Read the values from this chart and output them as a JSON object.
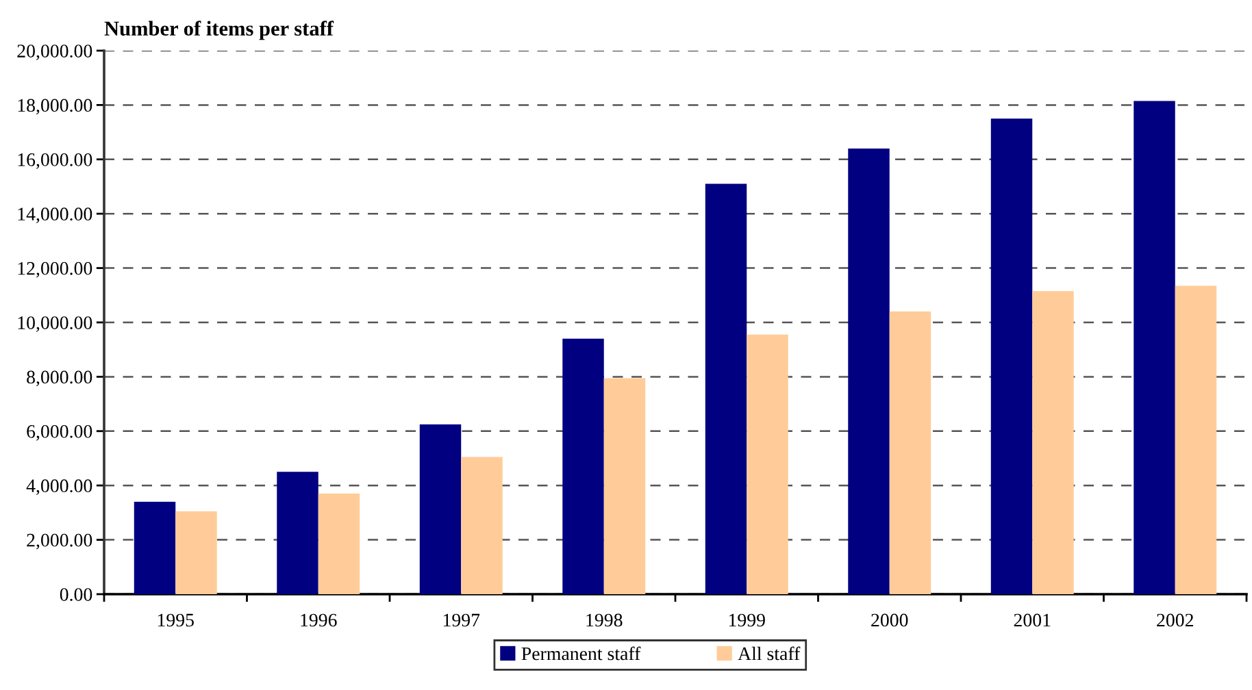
{
  "chart_data": {
    "type": "bar",
    "title": "Number of items per staff",
    "categories": [
      "1995",
      "1996",
      "1997",
      "1998",
      "1999",
      "2000",
      "2001",
      "2002"
    ],
    "series": [
      {
        "name": "Permanent staff",
        "color": "#000080",
        "values": [
          3400,
          4500,
          6250,
          9400,
          15100,
          16400,
          17500,
          18150
        ]
      },
      {
        "name": "All staff",
        "color": "#ffcc99",
        "values": [
          3050,
          3700,
          5050,
          7950,
          9550,
          10400,
          11150,
          11350
        ]
      }
    ],
    "ylim": [
      0,
      20000
    ],
    "yticks": [
      {
        "value": 0,
        "label": "0.00"
      },
      {
        "value": 2000,
        "label": "2,000.00"
      },
      {
        "value": 4000,
        "label": "4,000.00"
      },
      {
        "value": 6000,
        "label": "6,000.00"
      },
      {
        "value": 8000,
        "label": "8,000.00"
      },
      {
        "value": 10000,
        "label": "10,000.00"
      },
      {
        "value": 12000,
        "label": "12,000.00"
      },
      {
        "value": 14000,
        "label": "14,000.00"
      },
      {
        "value": 16000,
        "label": "16,000.00"
      },
      {
        "value": 18000,
        "label": "18,000.00"
      },
      {
        "value": 20000,
        "label": "20,000.00"
      }
    ],
    "grid": "y",
    "legend": "bottom"
  }
}
